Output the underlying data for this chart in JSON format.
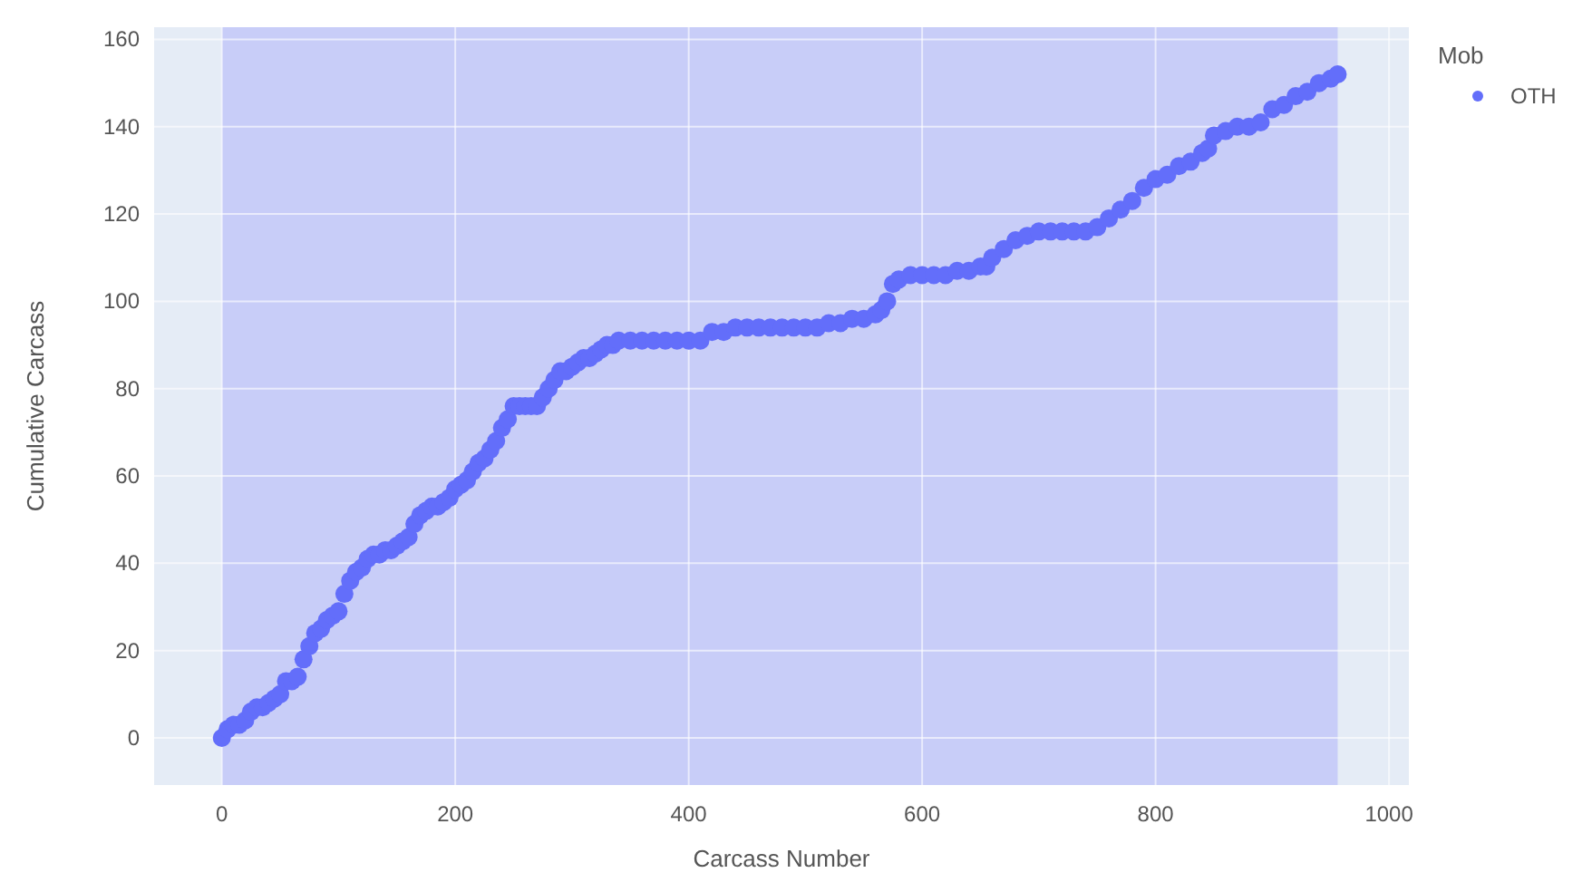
{
  "chart_data": {
    "type": "scatter",
    "xlabel": "Carcass Number",
    "ylabel": "Cumulative Carcass",
    "legend_title": "Mob",
    "legend": "top right",
    "grid": true,
    "marker": "circle",
    "xlim": [
      -58,
      1017
    ],
    "xticks": [
      0,
      200,
      400,
      600,
      800,
      1000
    ],
    "ylim": [
      -10.8,
      162.8
    ],
    "yticks": [
      0,
      20,
      40,
      60,
      80,
      100,
      120,
      140,
      160
    ],
    "bands": [
      {
        "axis": "x",
        "from": 0,
        "to": 956,
        "color": "#c8cdf8"
      }
    ],
    "series": [
      {
        "name": "OTH",
        "color": "#636efa",
        "x": [
          0,
          5,
          10,
          15,
          20,
          25,
          30,
          35,
          40,
          45,
          50,
          55,
          60,
          65,
          70,
          75,
          80,
          85,
          90,
          95,
          100,
          105,
          110,
          115,
          120,
          125,
          130,
          135,
          140,
          145,
          150,
          155,
          160,
          165,
          170,
          175,
          180,
          185,
          190,
          195,
          200,
          205,
          210,
          215,
          220,
          225,
          230,
          235,
          240,
          245,
          250,
          255,
          260,
          265,
          270,
          275,
          280,
          285,
          290,
          295,
          300,
          305,
          310,
          315,
          320,
          325,
          330,
          335,
          340,
          350,
          360,
          370,
          380,
          390,
          400,
          410,
          420,
          430,
          440,
          450,
          460,
          470,
          480,
          490,
          500,
          510,
          520,
          530,
          540,
          550,
          560,
          565,
          570,
          575,
          580,
          590,
          600,
          610,
          620,
          630,
          640,
          650,
          655,
          660,
          670,
          680,
          690,
          700,
          710,
          720,
          730,
          740,
          750,
          760,
          770,
          780,
          790,
          800,
          810,
          820,
          830,
          840,
          845,
          850,
          860,
          870,
          880,
          890,
          900,
          910,
          920,
          930,
          940,
          950,
          956
        ],
        "values": [
          0,
          2,
          3,
          3,
          4,
          6,
          7,
          7,
          8,
          9,
          10,
          13,
          13,
          14,
          18,
          21,
          24,
          25,
          27,
          28,
          29,
          33,
          36,
          38,
          39,
          41,
          42,
          42,
          43,
          43,
          44,
          45,
          46,
          49,
          51,
          52,
          53,
          53,
          54,
          55,
          57,
          58,
          59,
          61,
          63,
          64,
          66,
          68,
          71,
          73,
          76,
          76,
          76,
          76,
          76,
          78,
          80,
          82,
          84,
          84,
          85,
          86,
          87,
          87,
          88,
          89,
          90,
          90,
          91,
          91,
          91,
          91,
          91,
          91,
          91,
          91,
          93,
          93,
          94,
          94,
          94,
          94,
          94,
          94,
          94,
          94,
          95,
          95,
          96,
          96,
          97,
          98,
          100,
          104,
          105,
          106,
          106,
          106,
          106,
          107,
          107,
          108,
          108,
          110,
          112,
          114,
          115,
          116,
          116,
          116,
          116,
          116,
          117,
          119,
          121,
          123,
          126,
          128,
          129,
          131,
          132,
          134,
          135,
          138,
          139,
          140,
          140,
          141,
          144,
          145,
          147,
          148,
          150,
          151,
          152
        ]
      }
    ]
  }
}
